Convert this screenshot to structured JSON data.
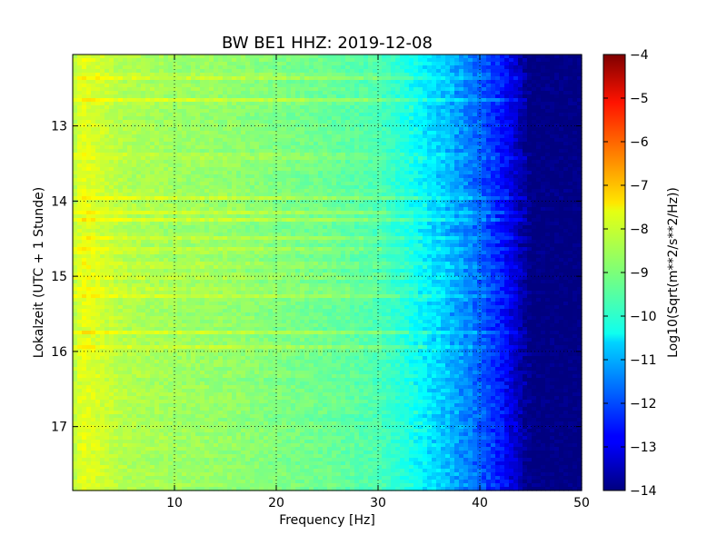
{
  "chart_data": {
    "type": "heatmap",
    "title": "BW BE1 HHZ: 2019-12-08",
    "xlabel": "Frequency [Hz]",
    "ylabel": "Lokalzeit (UTC + 1 Stunde)",
    "xlim": [
      0,
      50
    ],
    "ylim": [
      12.05,
      17.85
    ],
    "y_inverted": true,
    "x_ticks": [
      10,
      20,
      30,
      40,
      50
    ],
    "x_tick_labels": [
      "10",
      "20",
      "30",
      "40",
      "50"
    ],
    "y_ticks": [
      13,
      14,
      15,
      16,
      17
    ],
    "y_tick_labels": [
      "13",
      "14",
      "15",
      "16",
      "17"
    ],
    "grid": true,
    "colormap": "jet",
    "colorbar": {
      "label": "Log10(Sqrt(m**2/s**2/Hz))",
      "range": [
        -14,
        -4
      ],
      "ticks": [
        -4,
        -5,
        -6,
        -7,
        -8,
        -9,
        -10,
        -11,
        -12,
        -13,
        -14
      ],
      "tick_labels": [
        "−4",
        "−5",
        "−6",
        "−7",
        "−8",
        "−9",
        "−10",
        "−11",
        "−12",
        "−13",
        "−14"
      ]
    },
    "spectrum_profile": [
      {
        "freq": 0,
        "level": -8.5
      },
      {
        "freq": 1,
        "level": -8.0
      },
      {
        "freq": 5,
        "level": -8.5
      },
      {
        "freq": 10,
        "level": -8.7
      },
      {
        "freq": 15,
        "level": -8.8
      },
      {
        "freq": 20,
        "level": -9.0
      },
      {
        "freq": 25,
        "level": -9.2
      },
      {
        "freq": 30,
        "level": -9.5
      },
      {
        "freq": 33,
        "level": -10.0
      },
      {
        "freq": 36,
        "level": -10.7
      },
      {
        "freq": 39,
        "level": -11.5
      },
      {
        "freq": 42,
        "level": -12.5
      },
      {
        "freq": 45,
        "level": -14.0
      },
      {
        "freq": 50,
        "level": -14.0
      }
    ],
    "bright_bands_time": [
      12.35,
      12.65,
      13.4,
      13.95,
      14.15,
      14.25,
      14.5,
      14.65,
      14.85,
      15.0,
      15.15,
      15.25,
      15.75,
      15.95
    ]
  }
}
